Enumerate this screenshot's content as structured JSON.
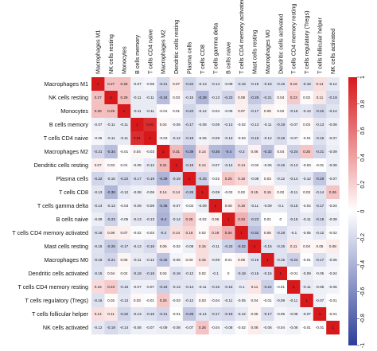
{
  "chart_data": {
    "type": "heatmap",
    "title": "",
    "rows": [
      "Macrophages M1",
      "NK cells resting",
      "Monocytes",
      "B cells memory",
      "T cells CD4 naive",
      "Macrophages M2",
      "Dendritic cells resting",
      "Plasma cells",
      "T cells CD8",
      "T cells gamma delta",
      "B cells naive",
      "T cells CD4 memory activated",
      "Mast cells resting",
      "Macrophages M0",
      "Dendritic cells activated",
      "T cells CD4 memory resting",
      "T cells regulatory (Tregs)",
      "T cells follicular helper",
      "NK cells activated"
    ],
    "columns": [
      "Macrophages M1",
      "NK cells resting",
      "Monocytes",
      "B cells memory",
      "T cells CD4 naive",
      "Macrophages M2",
      "Dendritic cells resting",
      "Plasma cells",
      "T cells CD8",
      "T cells gamma delta",
      "B cells naive",
      "T cells CD4 memory activated",
      "Mast cells resting",
      "Macrophages M0",
      "Dendritic cells activated",
      "T cells CD4 memory resting",
      "T cells regulatory (Tregs)",
      "T cells follicular helper",
      "NK cells activated"
    ],
    "values": [
      [
        1,
        0.27,
        0.28,
        -0.07,
        -0.05,
        -0.21,
        0.07,
        -0.22,
        -0.13,
        -0.14,
        -0.09,
        -0.16,
        -0.15,
        -0.16,
        -0.15,
        0.16,
        -0.16,
        0.14,
        -0.12
      ],
      [
        0.27,
        1,
        0.29,
        -0.11,
        -0.11,
        -0.34,
        0.03,
        -0.15,
        -0.38,
        -0.13,
        -0.23,
        0.08,
        -0.28,
        -0.21,
        0.04,
        0.23,
        0.02,
        0.11,
        -0.19
      ],
      [
        0.28,
        0.29,
        1,
        -0.11,
        -0.11,
        -0.01,
        0.01,
        -0.22,
        -0.12,
        -0.04,
        -0.05,
        0.07,
        -0.17,
        0.05,
        0.02,
        -0.15,
        -0.13,
        -0.22,
        -0.14
      ],
      [
        -0.07,
        -0.11,
        -0.11,
        1,
        0.91,
        0.04,
        -0.05,
        -0.17,
        -0.08,
        -0.09,
        -0.13,
        -0.02,
        -0.13,
        -0.11,
        -0.18,
        -0.07,
        0.03,
        -0.13,
        -0.08
      ],
      [
        -0.05,
        -0.11,
        -0.11,
        0.91,
        1,
        -0.03,
        -0.12,
        -0.19,
        -0.06,
        -0.09,
        -0.13,
        -0.03,
        -0.18,
        -0.12,
        -0.18,
        -0.07,
        -0.01,
        -0.16,
        -0.07
      ],
      [
        -0.21,
        -0.34,
        -0.01,
        0.04,
        -0.03,
        1,
        0.31,
        -0.39,
        0.14,
        -0.36,
        -0.4,
        -0.2,
        0.06,
        -0.32,
        0.04,
        -0.24,
        0.25,
        -0.21,
        -0.09
      ],
      [
        0.07,
        0.03,
        0.01,
        -0.05,
        -0.12,
        0.31,
        1,
        -0.19,
        0.14,
        -0.07,
        -0.14,
        0.14,
        -0.02,
        -0.05,
        -0.16,
        -0.13,
        -0.03,
        -0.01,
        -0.08
      ],
      [
        -0.22,
        -0.15,
        -0.22,
        -0.17,
        -0.19,
        -0.39,
        -0.19,
        1,
        -0.25,
        -0.02,
        0.25,
        0.18,
        -0.08,
        0.03,
        -0.12,
        -0.14,
        -0.12,
        -0.29,
        -0.07
      ],
      [
        -0.13,
        -0.38,
        -0.12,
        -0.08,
        -0.06,
        0.14,
        0.14,
        -0.25,
        1,
        -0.09,
        -0.02,
        0.02,
        0.15,
        0.15,
        0.02,
        -0.11,
        0.03,
        -0.14,
        0.26
      ],
      [
        -0.14,
        -0.13,
        -0.04,
        -0.09,
        -0.09,
        -0.36,
        -0.07,
        -0.02,
        -0.09,
        1,
        0.06,
        0.19,
        -0.11,
        -0.09,
        -0.1,
        -0.15,
        -0.04,
        -0.17,
        -0.04
      ],
      [
        -0.09,
        -0.23,
        -0.05,
        -0.13,
        -0.13,
        -0.4,
        -0.14,
        0.25,
        -0.02,
        0.06,
        1,
        0.34,
        -0.23,
        0.01,
        0,
        -0.15,
        -0.11,
        -0.19,
        -0.08
      ],
      [
        -0.16,
        0.08,
        0.07,
        -0.02,
        -0.03,
        -0.2,
        0.14,
        0.18,
        0.02,
        0.19,
        0.34,
        1,
        -0.32,
        0.06,
        -0.18,
        -0.1,
        -0.05,
        -0.12,
        -0.02
      ],
      [
        -0.15,
        -0.28,
        -0.17,
        -0.13,
        -0.18,
        0.06,
        -0.02,
        -0.08,
        0.15,
        -0.11,
        -0.23,
        -0.32,
        1,
        -0.15,
        -0.15,
        0.11,
        0.04,
        0.05,
        0.08
      ],
      [
        -0.16,
        -0.21,
        0.05,
        -0.11,
        -0.12,
        -0.32,
        -0.05,
        0.03,
        0.15,
        -0.09,
        0.01,
        0.06,
        -0.15,
        1,
        -0.15,
        -0.24,
        -0.01,
        -0.17,
        -0.06
      ],
      [
        -0.15,
        0.04,
        0.02,
        -0.18,
        -0.18,
        0.04,
        -0.16,
        -0.12,
        0.02,
        -0.1,
        0,
        -0.18,
        -0.15,
        -0.15,
        1,
        -0.01,
        -0.09,
        -0.05,
        -0.04
      ],
      [
        0.16,
        0.23,
        -0.15,
        -0.07,
        -0.07,
        -0.24,
        -0.13,
        -0.14,
        -0.11,
        -0.15,
        -0.15,
        -0.1,
        0.11,
        -0.24,
        -0.01,
        1,
        -0.11,
        -0.08,
        -0.06
      ],
      [
        -0.16,
        0.02,
        -0.13,
        0.03,
        -0.01,
        0.25,
        -0.03,
        -0.12,
        0.03,
        -0.04,
        -0.11,
        -0.05,
        0.04,
        -0.01,
        -0.09,
        -0.11,
        1,
        -0.07,
        -0.01
      ],
      [
        0.14,
        0.11,
        -0.22,
        -0.13,
        -0.16,
        -0.21,
        -0.01,
        -0.29,
        -0.14,
        -0.17,
        -0.19,
        -0.12,
        0.05,
        -0.17,
        -0.05,
        -0.08,
        -0.07,
        1,
        -0.01
      ],
      [
        -0.12,
        -0.19,
        -0.14,
        -0.08,
        -0.07,
        -0.09,
        -0.08,
        -0.07,
        0.26,
        -0.04,
        -0.08,
        -0.02,
        0.08,
        -0.06,
        -0.04,
        -0.06,
        -0.01,
        -0.01,
        1
      ]
    ],
    "value_range": [
      -1,
      1
    ],
    "colorbar": {
      "position": "right",
      "ticks": [
        1,
        0.8,
        0.6,
        0.4,
        0.2,
        0,
        -0.2,
        -0.4,
        -0.6,
        -0.8,
        -1
      ],
      "tick_labels": [
        "1",
        "0.8",
        "0.6",
        "0.4",
        "0.2",
        "0",
        "-0.2",
        "-0.4",
        "-0.6",
        "-0.8",
        "-1"
      ],
      "color_high": "#d7191c",
      "color_mid": "#ffffff",
      "color_low": "#2c3e99"
    },
    "grid": false
  }
}
